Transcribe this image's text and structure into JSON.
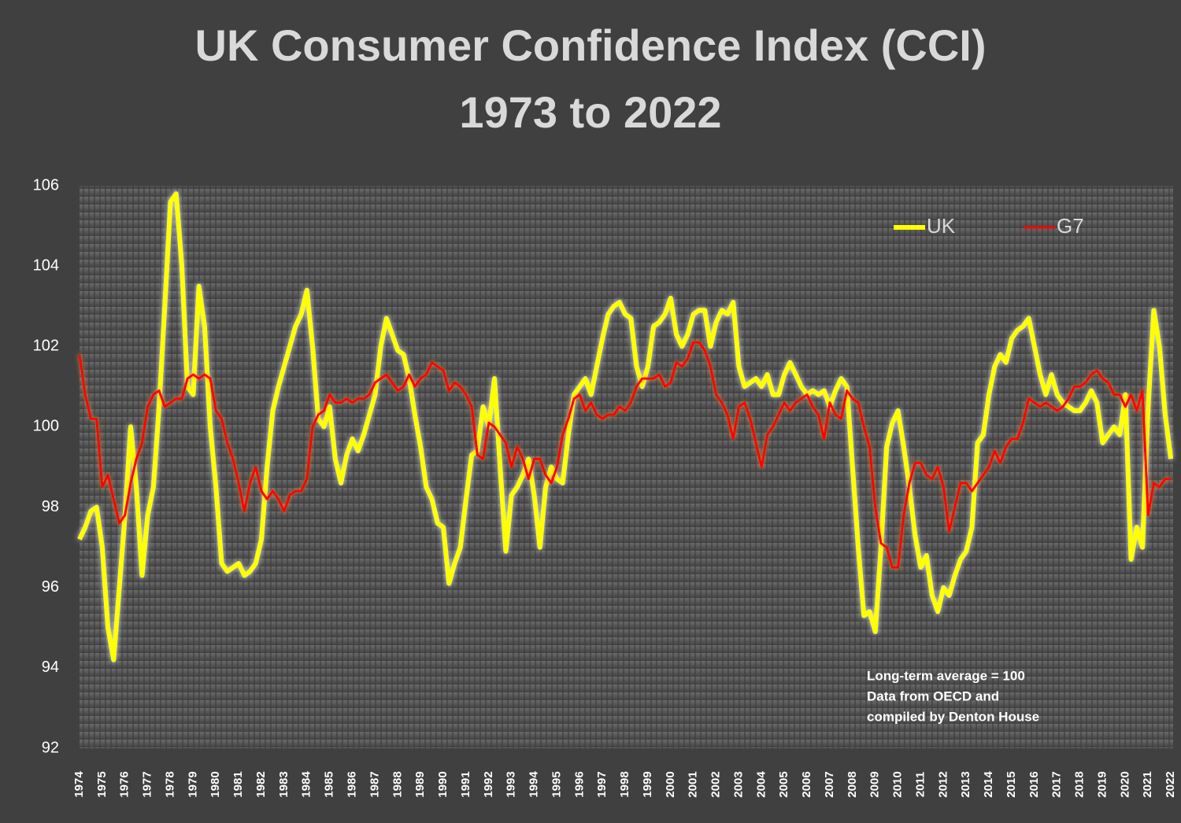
{
  "chart_data": {
    "type": "line",
    "title": "UK Consumer Confidence Index (CCI)",
    "subtitle": "1973 to 2022",
    "annotations": [
      "Long-term average = 100",
      "Data from OECD and",
      "compiled by Denton House"
    ],
    "legend": "upper right",
    "grid": false,
    "ylim": [
      92,
      106
    ],
    "yticks": [
      92,
      94,
      96,
      98,
      100,
      102,
      104,
      106
    ],
    "xlim": [
      1974,
      2022.1
    ],
    "xticks": [
      1974,
      1975,
      1976,
      1977,
      1978,
      1979,
      1980,
      1981,
      1982,
      1983,
      1984,
      1985,
      1986,
      1987,
      1988,
      1989,
      1990,
      1991,
      1992,
      1993,
      1994,
      1995,
      1996,
      1997,
      1998,
      1999,
      2000,
      2001,
      2002,
      2003,
      2004,
      2005,
      2006,
      2007,
      2008,
      2009,
      2010,
      2011,
      2012,
      2013,
      2014,
      2015,
      2016,
      2017,
      2018,
      2019,
      2020,
      2021,
      2022
    ],
    "x": [
      1974,
      1974.25,
      1974.5,
      1974.75,
      1975,
      1975.25,
      1975.5,
      1975.75,
      1976,
      1976.25,
      1976.5,
      1976.75,
      1977,
      1977.25,
      1977.5,
      1977.75,
      1978,
      1978.25,
      1978.5,
      1978.75,
      1979,
      1979.25,
      1979.5,
      1979.75,
      1980,
      1980.25,
      1980.5,
      1980.75,
      1981,
      1981.25,
      1981.5,
      1981.75,
      1982,
      1982.25,
      1982.5,
      1982.75,
      1983,
      1983.25,
      1983.5,
      1983.75,
      1984,
      1984.25,
      1984.5,
      1984.75,
      1985,
      1985.25,
      1985.5,
      1985.75,
      1986,
      1986.25,
      1986.5,
      1986.75,
      1987,
      1987.25,
      1987.5,
      1987.75,
      1988,
      1988.25,
      1988.5,
      1988.75,
      1989,
      1989.25,
      1989.5,
      1989.75,
      1990,
      1990.25,
      1990.5,
      1990.75,
      1991,
      1991.25,
      1991.5,
      1991.75,
      1992,
      1992.25,
      1992.5,
      1992.75,
      1993,
      1993.25,
      1993.5,
      1993.75,
      1994,
      1994.25,
      1994.5,
      1994.75,
      1995,
      1995.25,
      1995.5,
      1995.75,
      1996,
      1996.25,
      1996.5,
      1996.75,
      1997,
      1997.25,
      1997.5,
      1997.75,
      1998,
      1998.25,
      1998.5,
      1998.75,
      1999,
      1999.25,
      1999.5,
      1999.75,
      2000,
      2000.25,
      2000.5,
      2000.75,
      2001,
      2001.25,
      2001.5,
      2001.75,
      2002,
      2002.25,
      2002.5,
      2002.75,
      2003,
      2003.25,
      2003.5,
      2003.75,
      2004,
      2004.25,
      2004.5,
      2004.75,
      2005,
      2005.25,
      2005.5,
      2005.75,
      2006,
      2006.25,
      2006.5,
      2006.75,
      2007,
      2007.25,
      2007.5,
      2007.75,
      2008,
      2008.25,
      2008.5,
      2008.75,
      2009,
      2009.25,
      2009.5,
      2009.75,
      2010,
      2010.25,
      2010.5,
      2010.75,
      2011,
      2011.25,
      2011.5,
      2011.75,
      2012,
      2012.25,
      2012.5,
      2012.75,
      2013,
      2013.25,
      2013.5,
      2013.75,
      2014,
      2014.25,
      2014.5,
      2014.75,
      2015,
      2015.25,
      2015.5,
      2015.75,
      2016,
      2016.25,
      2016.5,
      2016.75,
      2017,
      2017.25,
      2017.5,
      2017.75,
      2018,
      2018.25,
      2018.5,
      2018.75,
      2019,
      2019.25,
      2019.5,
      2019.75,
      2020,
      2020.25,
      2020.5,
      2020.75,
      2021,
      2021.25,
      2021.5,
      2021.75,
      2022
    ],
    "series": [
      {
        "name": "UK",
        "color": "#ffff00",
        "values": [
          97.2,
          97.5,
          97.9,
          98.0,
          97.0,
          95.0,
          94.2,
          96.0,
          97.8,
          100.0,
          98.5,
          96.3,
          97.8,
          98.5,
          100.5,
          103.0,
          105.6,
          105.8,
          104.0,
          101.0,
          100.8,
          103.5,
          102.5,
          100.0,
          98.5,
          96.6,
          96.4,
          96.5,
          96.6,
          96.3,
          96.4,
          96.6,
          97.2,
          99.0,
          100.4,
          101.0,
          101.5,
          102.0,
          102.5,
          102.8,
          103.4,
          102.0,
          100.2,
          100.0,
          100.5,
          99.2,
          98.6,
          99.3,
          99.7,
          99.4,
          99.8,
          100.3,
          100.8,
          102.0,
          102.7,
          102.3,
          101.9,
          101.8,
          101.2,
          100.3,
          99.5,
          98.5,
          98.2,
          97.6,
          97.5,
          96.1,
          96.6,
          97.0,
          98.2,
          99.3,
          99.4,
          100.5,
          100.0,
          101.2,
          99.0,
          96.9,
          98.3,
          98.5,
          98.8,
          99.2,
          98.3,
          97.0,
          98.5,
          99.0,
          98.7,
          98.6,
          99.8,
          100.8,
          101.0,
          101.2,
          100.8,
          101.5,
          102.2,
          102.8,
          103.0,
          103.1,
          102.8,
          102.7,
          101.5,
          101.0,
          101.5,
          102.5,
          102.6,
          102.8,
          103.2,
          102.3,
          102.0,
          102.3,
          102.8,
          102.9,
          102.9,
          102.0,
          102.6,
          102.9,
          102.8,
          103.1,
          101.5,
          101.0,
          101.1,
          101.2,
          101.0,
          101.3,
          100.8,
          100.8,
          101.3,
          101.6,
          101.3,
          101.0,
          100.8,
          100.9,
          100.8,
          100.9,
          100.5,
          100.9,
          101.2,
          101.0,
          99.0,
          97.0,
          95.3,
          95.4,
          94.9,
          97.0,
          99.5,
          100.1,
          100.4,
          99.5,
          98.5,
          97.3,
          96.5,
          96.8,
          95.8,
          95.4,
          96.0,
          95.8,
          96.3,
          96.7,
          96.9,
          97.5,
          99.6,
          99.8,
          100.8,
          101.5,
          101.8,
          101.6,
          102.2,
          102.4,
          102.5,
          102.7,
          102.0,
          101.3,
          100.8,
          101.3,
          100.8,
          100.6,
          100.5,
          100.4,
          100.4,
          100.6,
          100.9,
          100.6,
          99.6,
          99.8,
          100.0,
          99.8,
          100.8,
          96.7,
          97.5,
          97.0,
          100.5,
          102.9,
          102.0,
          100.3,
          99.2
        ]
      },
      {
        "name": "G7",
        "color": "#ff0000",
        "values": [
          101.8,
          100.8,
          100.2,
          100.2,
          98.5,
          98.8,
          98.2,
          97.6,
          97.8,
          98.6,
          99.2,
          99.6,
          100.5,
          100.8,
          100.9,
          100.5,
          100.6,
          100.7,
          100.7,
          101.2,
          101.3,
          101.2,
          101.3,
          101.2,
          100.4,
          100.2,
          99.6,
          99.2,
          98.6,
          97.9,
          98.6,
          99.0,
          98.4,
          98.2,
          98.4,
          98.2,
          97.9,
          98.3,
          98.4,
          98.4,
          98.7,
          100.0,
          100.3,
          100.4,
          100.8,
          100.6,
          100.6,
          100.7,
          100.6,
          100.7,
          100.7,
          100.8,
          101.1,
          101.2,
          101.3,
          101.1,
          100.9,
          101.0,
          101.3,
          101.0,
          101.2,
          101.3,
          101.6,
          101.5,
          101.4,
          100.9,
          101.1,
          101.0,
          100.8,
          100.5,
          99.3,
          99.2,
          100.1,
          100.0,
          99.8,
          99.6,
          99.0,
          99.5,
          99.2,
          98.7,
          99.2,
          99.2,
          98.8,
          98.6,
          99.0,
          99.8,
          100.2,
          100.7,
          100.8,
          100.4,
          100.6,
          100.3,
          100.2,
          100.3,
          100.3,
          100.5,
          100.4,
          100.6,
          101.0,
          101.2,
          101.2,
          101.2,
          101.3,
          101.0,
          101.1,
          101.6,
          101.5,
          101.7,
          102.1,
          102.1,
          101.9,
          101.5,
          100.8,
          100.6,
          100.3,
          99.7,
          100.5,
          100.6,
          100.2,
          99.6,
          99.0,
          99.8,
          100.0,
          100.3,
          100.6,
          100.4,
          100.6,
          100.7,
          100.8,
          100.5,
          100.3,
          99.7,
          100.6,
          100.3,
          100.2,
          100.9,
          100.7,
          100.6,
          100.0,
          99.5,
          98.0,
          97.1,
          97.0,
          96.5,
          96.5,
          97.8,
          98.6,
          99.1,
          99.1,
          98.8,
          98.7,
          99.0,
          98.5,
          97.4,
          98.0,
          98.6,
          98.6,
          98.4,
          98.6,
          98.8,
          99.0,
          99.4,
          99.1,
          99.5,
          99.7,
          99.7,
          100.1,
          100.7,
          100.6,
          100.5,
          100.6,
          100.5,
          100.4,
          100.5,
          100.7,
          101.0,
          101.0,
          101.1,
          101.3,
          101.4,
          101.2,
          101.1,
          100.8,
          100.8,
          100.5,
          100.8,
          100.4,
          100.9,
          97.8,
          98.6,
          98.5,
          98.7,
          98.7
        ]
      }
    ]
  }
}
